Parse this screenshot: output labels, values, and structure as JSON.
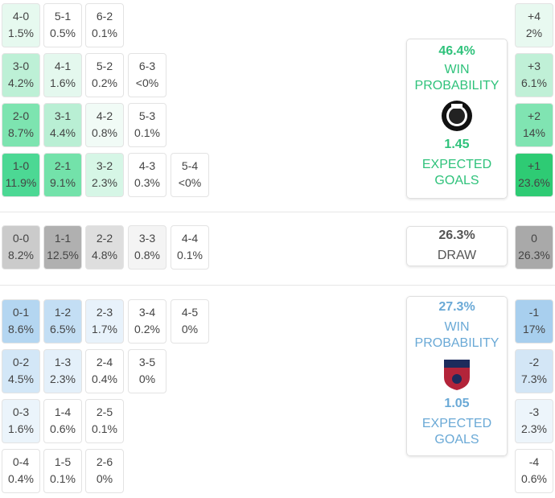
{
  "home": {
    "rows": [
      [
        {
          "score": "4-0",
          "pct": "1.5%",
          "color": "#e6f9ef"
        },
        {
          "score": "5-1",
          "pct": "0.5%",
          "color": "#ffffff"
        },
        {
          "score": "6-2",
          "pct": "0.1%",
          "color": "#ffffff"
        }
      ],
      [
        {
          "score": "3-0",
          "pct": "4.2%",
          "color": "#bdf0d6"
        },
        {
          "score": "4-1",
          "pct": "1.6%",
          "color": "#e4f8ee"
        },
        {
          "score": "5-2",
          "pct": "0.2%",
          "color": "#ffffff"
        },
        {
          "score": "6-3",
          "pct": "<0%",
          "color": "#ffffff"
        }
      ],
      [
        {
          "score": "2-0",
          "pct": "8.7%",
          "color": "#7de4b0"
        },
        {
          "score": "3-1",
          "pct": "4.4%",
          "color": "#b9efd4"
        },
        {
          "score": "4-2",
          "pct": "0.8%",
          "color": "#f1fbf6"
        },
        {
          "score": "5-3",
          "pct": "0.1%",
          "color": "#ffffff"
        }
      ],
      [
        {
          "score": "1-0",
          "pct": "11.9%",
          "color": "#4cd894"
        },
        {
          "score": "2-1",
          "pct": "9.1%",
          "color": "#73e2aa"
        },
        {
          "score": "3-2",
          "pct": "2.3%",
          "color": "#d6f6e6"
        },
        {
          "score": "4-3",
          "pct": "0.3%",
          "color": "#ffffff"
        },
        {
          "score": "5-4",
          "pct": "<0%",
          "color": "#ffffff"
        }
      ]
    ],
    "win_probability": "46.4%",
    "win_label": "WIN PROBABILITY",
    "expected_goals": "1.45",
    "xg_label": "EXPECTED GOALS",
    "margins": [
      {
        "label": "+4",
        "pct": "2%",
        "color": "#e8f9f0"
      },
      {
        "label": "+3",
        "pct": "6.1%",
        "color": "#c0f0d7"
      },
      {
        "label": "+2",
        "pct": "14%",
        "color": "#80e4b2"
      },
      {
        "label": "+1",
        "pct": "23.6%",
        "color": "#2ecb74"
      }
    ]
  },
  "draw": {
    "rows": [
      [
        {
          "score": "0-0",
          "pct": "8.2%",
          "color": "#cbcbcb"
        },
        {
          "score": "1-1",
          "pct": "12.5%",
          "color": "#b0b0b0"
        },
        {
          "score": "2-2",
          "pct": "4.8%",
          "color": "#dedede"
        },
        {
          "score": "3-3",
          "pct": "0.8%",
          "color": "#f4f4f4"
        },
        {
          "score": "4-4",
          "pct": "0.1%",
          "color": "#ffffff"
        }
      ]
    ],
    "probability": "26.3%",
    "label": "DRAW",
    "margins": [
      {
        "label": "0",
        "pct": "26.3%",
        "color": "#a9a9a9"
      }
    ]
  },
  "away": {
    "rows": [
      [
        {
          "score": "0-1",
          "pct": "8.6%",
          "color": "#b4d6f1"
        },
        {
          "score": "1-2",
          "pct": "6.5%",
          "color": "#c3def4"
        },
        {
          "score": "2-3",
          "pct": "1.7%",
          "color": "#e8f2fb"
        },
        {
          "score": "3-4",
          "pct": "0.2%",
          "color": "#ffffff"
        },
        {
          "score": "4-5",
          "pct": "0%",
          "color": "#ffffff"
        }
      ],
      [
        {
          "score": "0-2",
          "pct": "4.5%",
          "color": "#d3e7f7"
        },
        {
          "score": "1-3",
          "pct": "2.3%",
          "color": "#e4f0fa"
        },
        {
          "score": "2-4",
          "pct": "0.4%",
          "color": "#ffffff"
        },
        {
          "score": "3-5",
          "pct": "0%",
          "color": "#ffffff"
        }
      ],
      [
        {
          "score": "0-3",
          "pct": "1.6%",
          "color": "#ebf4fb"
        },
        {
          "score": "1-4",
          "pct": "0.6%",
          "color": "#ffffff"
        },
        {
          "score": "2-5",
          "pct": "0.1%",
          "color": "#ffffff"
        }
      ],
      [
        {
          "score": "0-4",
          "pct": "0.4%",
          "color": "#ffffff"
        },
        {
          "score": "1-5",
          "pct": "0.1%",
          "color": "#ffffff"
        },
        {
          "score": "2-6",
          "pct": "0%",
          "color": "#ffffff"
        }
      ]
    ],
    "win_probability": "27.3%",
    "win_label": "WIN PROBABILITY",
    "expected_goals": "1.05",
    "xg_label": "EXPECTED GOALS",
    "margins": [
      {
        "label": "-1",
        "pct": "17%",
        "color": "#a8cfee"
      },
      {
        "label": "-2",
        "pct": "7.3%",
        "color": "#d3e6f6"
      },
      {
        "label": "-3",
        "pct": "2.3%",
        "color": "#edf5fb"
      },
      {
        "label": "-4",
        "pct": "0.6%",
        "color": "#ffffff"
      }
    ]
  }
}
